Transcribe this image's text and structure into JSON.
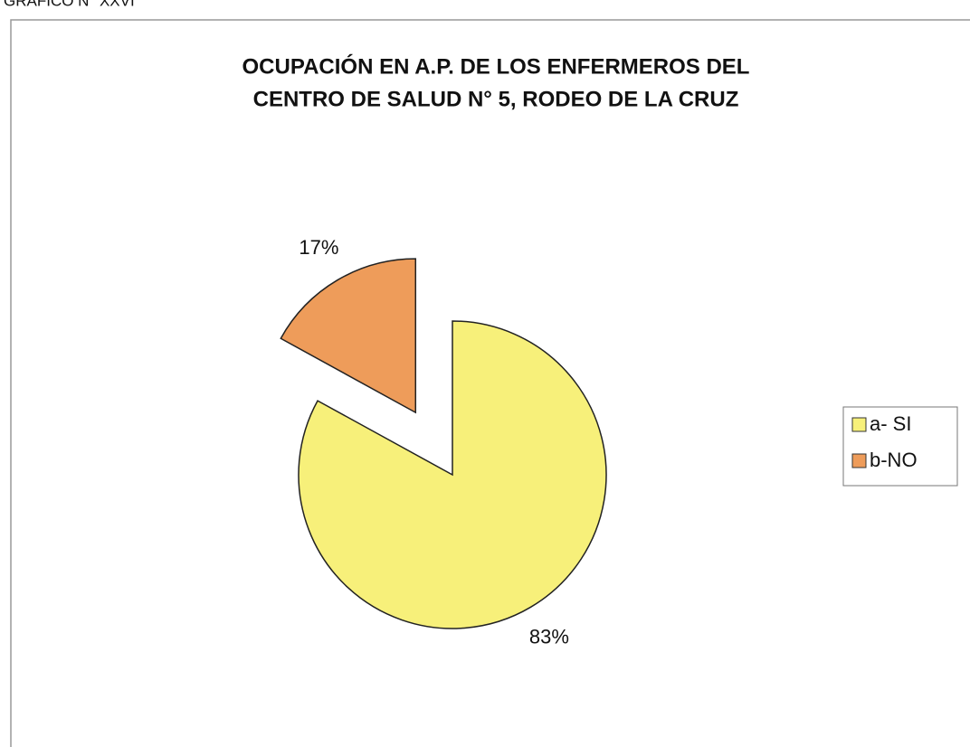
{
  "caption": "GRAFICO N° XXVI",
  "chart_data": {
    "type": "pie",
    "title": [
      "OCUPACIÓN  EN A.P. DE LOS ENFERMEROS DEL",
      "CENTRO DE SALUD N° 5, RODEO DE LA CRUZ"
    ],
    "categories": [
      "a- SI",
      "b-NO"
    ],
    "values": [
      83,
      17
    ],
    "value_labels": [
      "83%",
      "17%"
    ],
    "colors": [
      "#f7f07a",
      "#ee9c5a"
    ],
    "legend": "right"
  }
}
